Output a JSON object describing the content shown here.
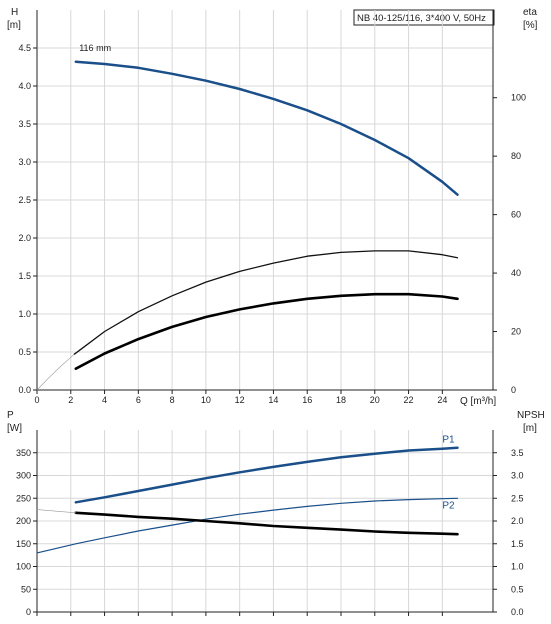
{
  "chart_data": [
    {
      "type": "line",
      "title": "NB 40-125/116, 3*400 V, 50Hz",
      "left_axis": {
        "label_top": "H",
        "label_unit": "[m]",
        "lim": [
          0,
          5.0
        ],
        "ticks": [
          0.0,
          0.5,
          1.0,
          1.5,
          2.0,
          2.5,
          3.0,
          3.5,
          4.0,
          4.5
        ],
        "tick_labels": [
          "0.0",
          "0.5",
          "1.0",
          "1.5",
          "2.0",
          "2.5",
          "3.0",
          "3.5",
          "4.0",
          "4.5"
        ]
      },
      "right_axis": {
        "label_top": "eta",
        "label_unit": "[%]",
        "lim": [
          0,
          130
        ],
        "ticks": [
          0,
          20,
          40,
          60,
          80,
          100
        ],
        "tick_labels": [
          "0",
          "20",
          "40",
          "60",
          "80",
          "100"
        ]
      },
      "x_axis": {
        "label": "Q [m³/h]",
        "lim": [
          0,
          27
        ],
        "ticks": [
          0,
          2,
          4,
          6,
          8,
          10,
          12,
          14,
          16,
          18,
          20,
          22,
          24
        ],
        "tick_labels": [
          "0",
          "2",
          "4",
          "6",
          "8",
          "10",
          "12",
          "14",
          "16",
          "18",
          "20",
          "22",
          "24"
        ]
      },
      "grid": true,
      "annotations": [
        {
          "text": "116 mm",
          "x": 2.5,
          "y": 4.38
        }
      ],
      "series": [
        {
          "name": "",
          "axis": "left",
          "color": "#1a4f8a",
          "width": 2.5,
          "x": [
            2.3,
            4,
            6,
            8,
            10,
            12,
            14,
            16,
            18,
            20,
            22,
            24,
            24.9
          ],
          "y": [
            4.32,
            4.29,
            4.24,
            4.16,
            4.07,
            3.96,
            3.83,
            3.68,
            3.5,
            3.29,
            3.05,
            2.74,
            2.57
          ]
        },
        {
          "name": "",
          "axis": "left",
          "color": "#111111",
          "width": 1.3,
          "x": [
            2.2,
            4,
            6,
            8,
            10,
            12,
            14,
            16,
            18,
            20,
            22,
            24,
            24.9
          ],
          "y": [
            0.47,
            0.77,
            1.03,
            1.24,
            1.42,
            1.56,
            1.67,
            1.76,
            1.81,
            1.83,
            1.83,
            1.78,
            1.74
          ]
        },
        {
          "name": "",
          "axis": "left",
          "color": "#000000",
          "width": 2.6,
          "x": [
            2.3,
            4,
            6,
            8,
            10,
            12,
            14,
            16,
            18,
            20,
            22,
            24,
            24.9
          ],
          "y": [
            0.28,
            0.48,
            0.67,
            0.83,
            0.96,
            1.06,
            1.14,
            1.2,
            1.24,
            1.26,
            1.26,
            1.23,
            1.2
          ]
        },
        {
          "name": "",
          "axis": "left",
          "color": "#999999",
          "width": 0.6,
          "thin": true,
          "x": [
            0,
            0.7,
            1.4,
            2.2
          ],
          "y": [
            0,
            0.16,
            0.31,
            0.47
          ]
        }
      ]
    },
    {
      "type": "line",
      "left_axis": {
        "label_top": "P",
        "label_unit": "[W]",
        "lim": [
          0,
          400
        ],
        "ticks": [
          0,
          50,
          100,
          150,
          200,
          250,
          300,
          350
        ],
        "tick_labels": [
          "0",
          "50",
          "100",
          "150",
          "200",
          "250",
          "300",
          "350"
        ]
      },
      "right_axis": {
        "label_top": "NPSH",
        "label_unit": "[m]",
        "lim": [
          0,
          4.0
        ],
        "ticks": [
          0.0,
          0.5,
          1.0,
          1.5,
          2.0,
          2.5,
          3.0,
          3.5
        ],
        "tick_labels": [
          "0.0",
          "0.5",
          "1.0",
          "1.5",
          "2.0",
          "2.5",
          "3.0",
          "3.5"
        ]
      },
      "x_lim": [
        0,
        27
      ],
      "x_ticks": [
        0,
        2,
        4,
        6,
        8,
        10,
        12,
        14,
        16,
        18,
        20,
        22,
        24
      ],
      "grid": true,
      "series": [
        {
          "name": "P1",
          "axis": "left",
          "color": "#1a4f8a",
          "width": 2.5,
          "x": [
            2.3,
            4,
            6,
            8,
            10,
            12,
            14,
            16,
            18,
            20,
            22,
            24,
            24.9
          ],
          "y": [
            241,
            252,
            266,
            280,
            294,
            307,
            319,
            330,
            340,
            348,
            355,
            359,
            361
          ]
        },
        {
          "name": "P2",
          "axis": "left",
          "color": "#1a4f8a",
          "width": 1.2,
          "x": [
            0,
            2.3,
            4,
            6,
            8,
            10,
            12,
            14,
            16,
            18,
            20,
            22,
            24,
            24.9
          ],
          "y": [
            130,
            150,
            163,
            178,
            191,
            204,
            215,
            224,
            232,
            239,
            244,
            247,
            249,
            250
          ]
        },
        {
          "name": "",
          "axis": "left",
          "color": "#000000",
          "width": 2.6,
          "x": [
            2.3,
            4,
            6,
            8,
            10,
            12,
            14,
            16,
            18,
            20,
            22,
            24,
            24.9
          ],
          "y": [
            218,
            214,
            209,
            205,
            200,
            195,
            189,
            185,
            181,
            177,
            174,
            172,
            171
          ]
        },
        {
          "name": "",
          "axis": "left",
          "color": "#999999",
          "width": 0.6,
          "thin": true,
          "x": [
            0,
            2.3
          ],
          "y": [
            225,
            218
          ]
        }
      ],
      "series_labels": [
        {
          "text": "P1",
          "series": 0,
          "x": 24.0,
          "y": 373,
          "color": "#1a4f8a"
        },
        {
          "text": "P2",
          "series": 1,
          "x": 24.0,
          "y": 228,
          "color": "#1a4f8a"
        }
      ]
    }
  ]
}
